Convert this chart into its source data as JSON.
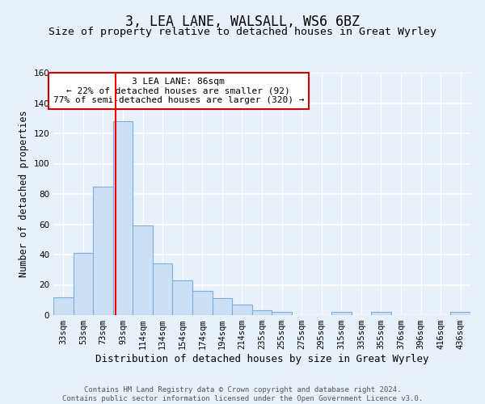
{
  "title": "3, LEA LANE, WALSALL, WS6 6BZ",
  "subtitle": "Size of property relative to detached houses in Great Wyrley",
  "xlabel": "Distribution of detached houses by size in Great Wyrley",
  "ylabel": "Number of detached properties",
  "categories": [
    "33sqm",
    "53sqm",
    "73sqm",
    "93sqm",
    "114sqm",
    "134sqm",
    "154sqm",
    "174sqm",
    "194sqm",
    "214sqm",
    "235sqm",
    "255sqm",
    "275sqm",
    "295sqm",
    "315sqm",
    "335sqm",
    "355sqm",
    "376sqm",
    "396sqm",
    "416sqm",
    "436sqm"
  ],
  "values": [
    12,
    41,
    85,
    128,
    59,
    34,
    23,
    16,
    11,
    7,
    3,
    2,
    0,
    0,
    2,
    0,
    2,
    0,
    0,
    0,
    2
  ],
  "bar_color": "#ccdff5",
  "bar_edge_color": "#7aafe0",
  "red_line_x": 2.65,
  "annotation_text": "3 LEA LANE: 86sqm\n← 22% of detached houses are smaller (92)\n77% of semi-detached houses are larger (320) →",
  "annotation_box_color": "#ffffff",
  "annotation_box_edge_color": "#cc0000",
  "ylim": [
    0,
    160
  ],
  "yticks": [
    0,
    20,
    40,
    60,
    80,
    100,
    120,
    140,
    160
  ],
  "background_color": "#e8f0fa",
  "grid_color": "#ffffff",
  "footer": "Contains HM Land Registry data © Crown copyright and database right 2024.\nContains public sector information licensed under the Open Government Licence v3.0.",
  "title_fontsize": 12,
  "subtitle_fontsize": 9.5,
  "xlabel_fontsize": 9,
  "ylabel_fontsize": 8.5,
  "tick_fontsize": 7.5,
  "annotation_fontsize": 8,
  "footer_fontsize": 6.5
}
